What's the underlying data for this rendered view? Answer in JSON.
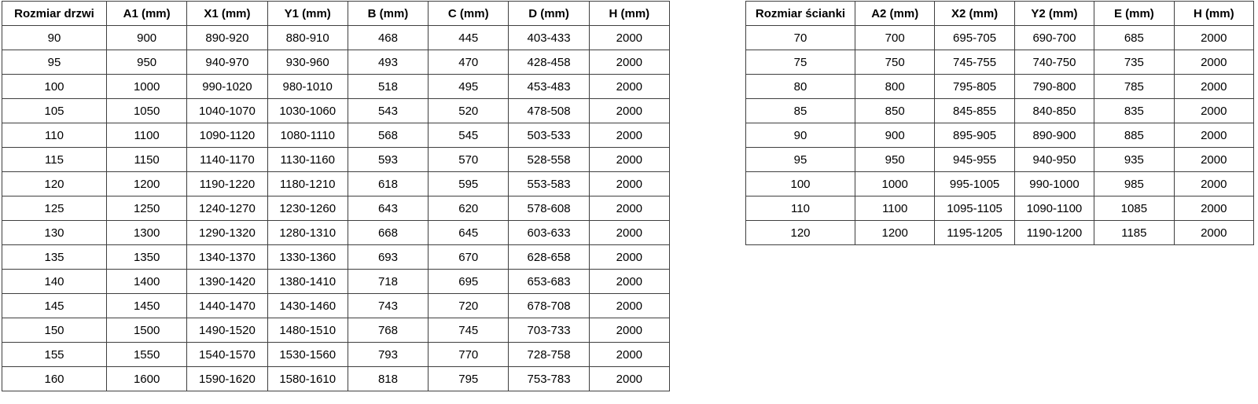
{
  "colors": {
    "border": "#3f3f3f",
    "text": "#000000",
    "background": "#ffffff"
  },
  "door_table": {
    "headers": [
      "Rozmiar drzwi",
      "A1 (mm)",
      "X1 (mm)",
      "Y1 (mm)",
      "B (mm)",
      "C (mm)",
      "D (mm)",
      "H (mm)"
    ],
    "rows": [
      [
        "90",
        "900",
        "890-920",
        "880-910",
        "468",
        "445",
        "403-433",
        "2000"
      ],
      [
        "95",
        "950",
        "940-970",
        "930-960",
        "493",
        "470",
        "428-458",
        "2000"
      ],
      [
        "100",
        "1000",
        "990-1020",
        "980-1010",
        "518",
        "495",
        "453-483",
        "2000"
      ],
      [
        "105",
        "1050",
        "1040-1070",
        "1030-1060",
        "543",
        "520",
        "478-508",
        "2000"
      ],
      [
        "110",
        "1100",
        "1090-1120",
        "1080-1110",
        "568",
        "545",
        "503-533",
        "2000"
      ],
      [
        "115",
        "1150",
        "1140-1170",
        "1130-1160",
        "593",
        "570",
        "528-558",
        "2000"
      ],
      [
        "120",
        "1200",
        "1190-1220",
        "1180-1210",
        "618",
        "595",
        "553-583",
        "2000"
      ],
      [
        "125",
        "1250",
        "1240-1270",
        "1230-1260",
        "643",
        "620",
        "578-608",
        "2000"
      ],
      [
        "130",
        "1300",
        "1290-1320",
        "1280-1310",
        "668",
        "645",
        "603-633",
        "2000"
      ],
      [
        "135",
        "1350",
        "1340-1370",
        "1330-1360",
        "693",
        "670",
        "628-658",
        "2000"
      ],
      [
        "140",
        "1400",
        "1390-1420",
        "1380-1410",
        "718",
        "695",
        "653-683",
        "2000"
      ],
      [
        "145",
        "1450",
        "1440-1470",
        "1430-1460",
        "743",
        "720",
        "678-708",
        "2000"
      ],
      [
        "150",
        "1500",
        "1490-1520",
        "1480-1510",
        "768",
        "745",
        "703-733",
        "2000"
      ],
      [
        "155",
        "1550",
        "1540-1570",
        "1530-1560",
        "793",
        "770",
        "728-758",
        "2000"
      ],
      [
        "160",
        "1600",
        "1590-1620",
        "1580-1610",
        "818",
        "795",
        "753-783",
        "2000"
      ]
    ]
  },
  "wall_table": {
    "headers": [
      "Rozmiar ścianki",
      "A2 (mm)",
      "X2 (mm)",
      "Y2 (mm)",
      "E (mm)",
      "H (mm)"
    ],
    "rows": [
      [
        "70",
        "700",
        "695-705",
        "690-700",
        "685",
        "2000"
      ],
      [
        "75",
        "750",
        "745-755",
        "740-750",
        "735",
        "2000"
      ],
      [
        "80",
        "800",
        "795-805",
        "790-800",
        "785",
        "2000"
      ],
      [
        "85",
        "850",
        "845-855",
        "840-850",
        "835",
        "2000"
      ],
      [
        "90",
        "900",
        "895-905",
        "890-900",
        "885",
        "2000"
      ],
      [
        "95",
        "950",
        "945-955",
        "940-950",
        "935",
        "2000"
      ],
      [
        "100",
        "1000",
        "995-1005",
        "990-1000",
        "985",
        "2000"
      ],
      [
        "110",
        "1100",
        "1095-1105",
        "1090-1100",
        "1085",
        "2000"
      ],
      [
        "120",
        "1200",
        "1195-1205",
        "1190-1200",
        "1185",
        "2000"
      ]
    ]
  }
}
